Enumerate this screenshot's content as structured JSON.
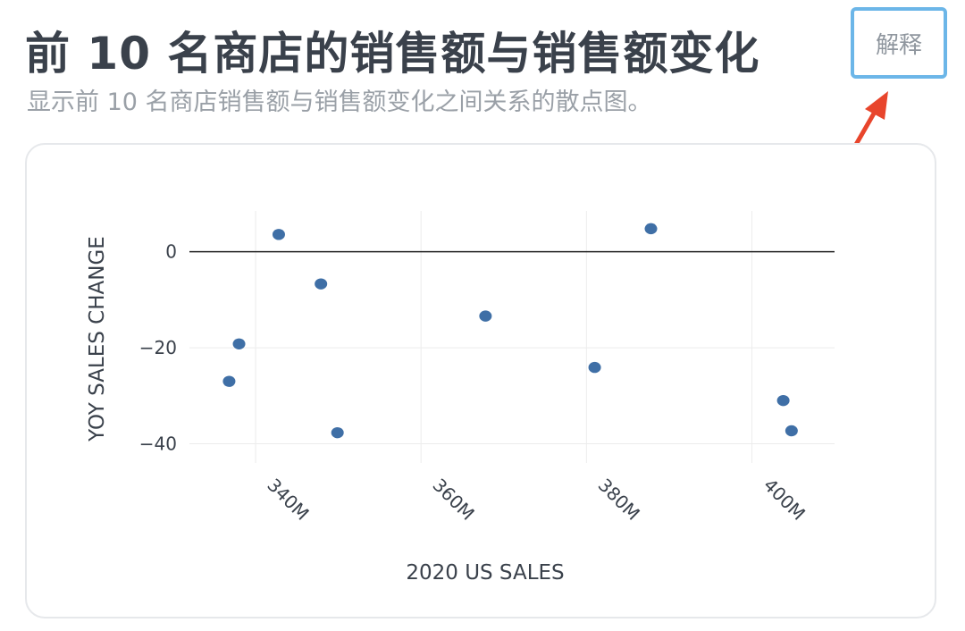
{
  "header": {
    "title": "前 10 名商店的销售额与销售额变化",
    "subtitle": "显示前 10 名商店销售额与销售额变化之间关系的散点图。",
    "explain_label": "解释"
  },
  "colors": {
    "point": "#3f6fa6",
    "grid": "#ececec",
    "zero_line": "#222222",
    "button_border": "#6cb6e8",
    "arrow": "#e8452c"
  },
  "chart_data": {
    "type": "scatter",
    "xlabel": "2020 US SALES",
    "ylabel": "YOY SALES CHANGE",
    "xlim": [
      332,
      410
    ],
    "ylim": [
      -44,
      8.5
    ],
    "x_ticks": [
      340,
      360,
      380,
      400
    ],
    "x_tick_labels": [
      "340M",
      "360M",
      "380M",
      "400M"
    ],
    "y_ticks": [
      0,
      -20,
      -40
    ],
    "y_tick_labels": [
      "0",
      "−20",
      "−40"
    ],
    "grid": true,
    "points": [
      {
        "x": 336.8,
        "y": -27.0
      },
      {
        "x": 338.0,
        "y": -19.2
      },
      {
        "x": 342.8,
        "y": 3.6
      },
      {
        "x": 347.9,
        "y": -6.7
      },
      {
        "x": 349.9,
        "y": -37.7
      },
      {
        "x": 367.8,
        "y": -13.4
      },
      {
        "x": 381.0,
        "y": -24.1
      },
      {
        "x": 387.8,
        "y": 4.8
      },
      {
        "x": 403.8,
        "y": -31.0
      },
      {
        "x": 404.8,
        "y": -37.3
      }
    ]
  }
}
